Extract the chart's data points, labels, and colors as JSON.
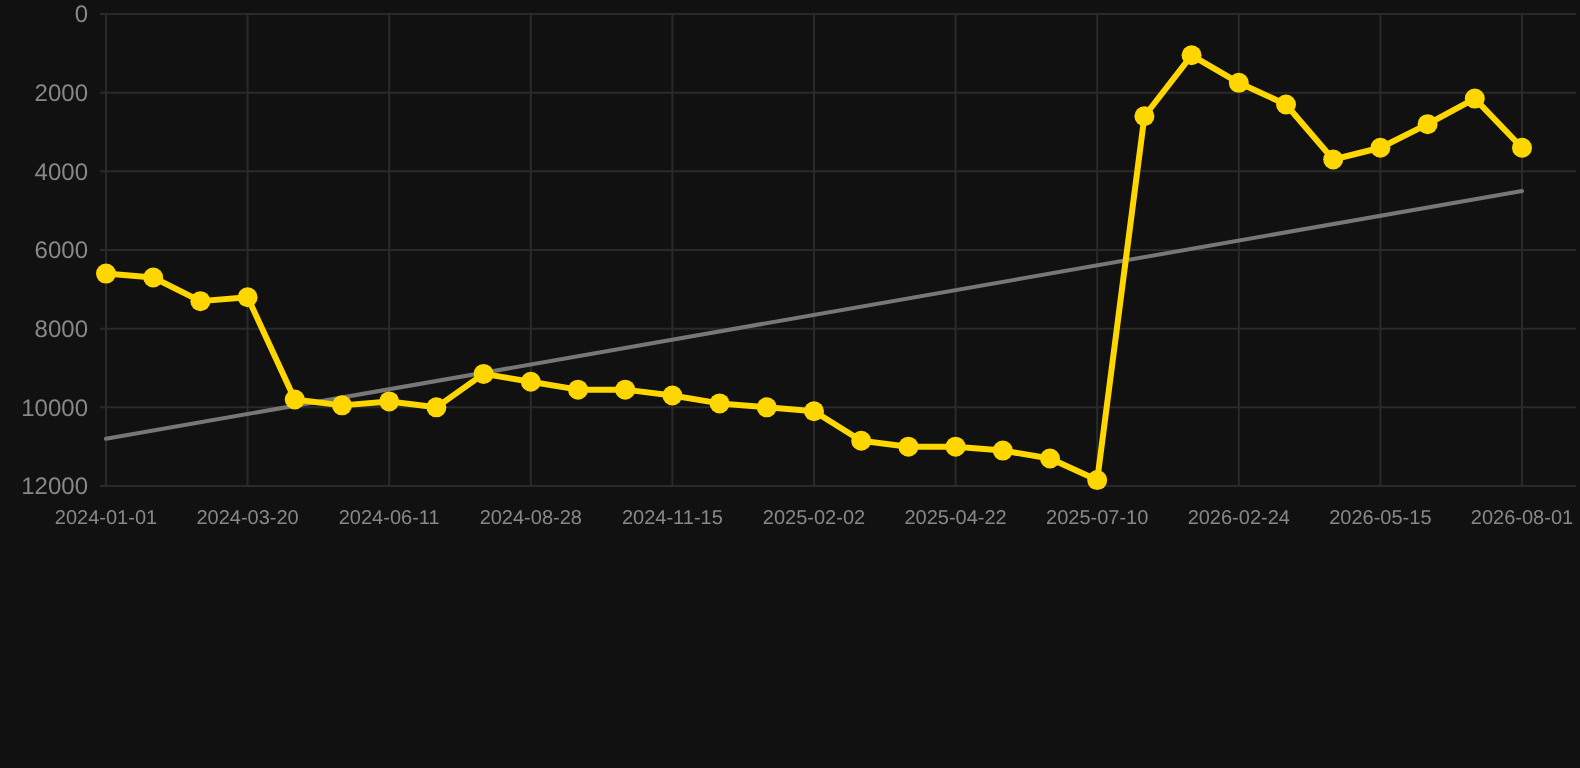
{
  "chart_data": {
    "type": "line",
    "categories": [
      "2024-01-01",
      null,
      null,
      "2024-03-20",
      null,
      null,
      "2024-06-11",
      null,
      null,
      "2024-08-28",
      null,
      null,
      "2024-11-15",
      null,
      null,
      "2025-02-02",
      null,
      null,
      "2025-04-22",
      null,
      null,
      "2025-07-10",
      null,
      null,
      "2026-02-24",
      null,
      null,
      "2026-05-15",
      null,
      null,
      "2026-08-01"
    ],
    "series": [
      {
        "color": "#ffd700",
        "marker": "circle",
        "values": [
          6600,
          6700,
          7300,
          7200,
          9800,
          9950,
          9850,
          10000,
          9150,
          9350,
          9550,
          9550,
          9700,
          9900,
          10000,
          10100,
          10850,
          11000,
          11000,
          11100,
          11300,
          11850,
          2600,
          1050,
          1750,
          2300,
          3700,
          3400,
          2800,
          2150,
          3400
        ]
      },
      {
        "color": "#777777",
        "marker": "none",
        "values": [
          10800,
          null,
          null,
          null,
          null,
          null,
          null,
          null,
          null,
          null,
          null,
          null,
          null,
          null,
          null,
          null,
          null,
          null,
          null,
          null,
          null,
          null,
          null,
          null,
          null,
          null,
          null,
          null,
          null,
          null,
          4500
        ]
      }
    ],
    "ylim": [
      12000,
      0
    ],
    "yticks": [
      0,
      2000,
      4000,
      6000,
      8000,
      10000,
      12000
    ],
    "grid": true,
    "line_style": "solid"
  }
}
